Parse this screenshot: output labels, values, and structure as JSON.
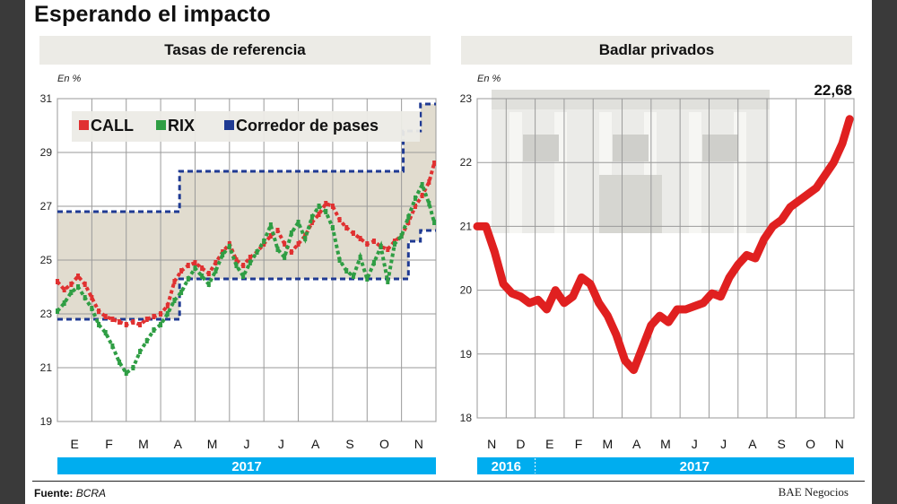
{
  "title": "Esperando el impacto",
  "footer": {
    "source_label": "Fuente:",
    "source_value": "BCRA",
    "brand": "BAE Negocios"
  },
  "chart_data": [
    {
      "type": "line",
      "title": "Tasas de referencia",
      "unit": "En %",
      "ylim": [
        19,
        31
      ],
      "yticks": [
        19,
        21,
        23,
        25,
        27,
        29,
        31
      ],
      "months": [
        "E",
        "F",
        "M",
        "A",
        "M",
        "J",
        "J",
        "A",
        "S",
        "O",
        "N"
      ],
      "year_bands": [
        "2017"
      ],
      "legend": [
        "CALL",
        "RIX",
        "Corredor de pases"
      ],
      "colors": {
        "call": "#e03131",
        "rix": "#2f9e44",
        "corridor": "#1f3a93",
        "band": "#d9d3c3"
      },
      "corridor": {
        "lower": [
          [
            0,
            22.8
          ],
          [
            3.55,
            22.8
          ],
          [
            3.55,
            24.3
          ],
          [
            10.2,
            24.3
          ],
          [
            10.2,
            25.7
          ],
          [
            10.55,
            25.7
          ],
          [
            10.55,
            26.1
          ],
          [
            11,
            26.1
          ]
        ],
        "upper": [
          [
            0,
            26.8
          ],
          [
            3.55,
            26.8
          ],
          [
            3.55,
            28.3
          ],
          [
            10.05,
            28.3
          ],
          [
            10.05,
            29.8
          ],
          [
            10.55,
            29.8
          ],
          [
            10.55,
            30.8
          ],
          [
            11,
            30.8
          ]
        ]
      },
      "series": [
        {
          "name": "CALL",
          "x": [
            0,
            0.2,
            0.4,
            0.6,
            0.8,
            1,
            1.2,
            1.4,
            1.6,
            1.8,
            2,
            2.2,
            2.4,
            2.6,
            2.8,
            3,
            3.2,
            3.4,
            3.6,
            3.8,
            4,
            4.2,
            4.4,
            4.6,
            4.8,
            5,
            5.2,
            5.4,
            5.6,
            5.8,
            6,
            6.2,
            6.4,
            6.6,
            6.8,
            7,
            7.2,
            7.4,
            7.6,
            7.8,
            8,
            8.2,
            8.4,
            8.6,
            8.8,
            9,
            9.2,
            9.4,
            9.6,
            9.8,
            10,
            10.2,
            10.4,
            10.6,
            10.8,
            10.95
          ],
          "values": [
            24.2,
            23.9,
            24.1,
            24.4,
            24.1,
            23.6,
            23.1,
            22.9,
            22.8,
            22.7,
            22.6,
            22.7,
            22.6,
            22.8,
            22.9,
            23.0,
            23.3,
            24.2,
            24.6,
            24.8,
            24.9,
            24.7,
            24.5,
            24.9,
            25.3,
            25.6,
            25.0,
            24.8,
            25.1,
            25.3,
            25.6,
            25.9,
            26.1,
            25.6,
            25.3,
            25.6,
            25.9,
            26.4,
            26.7,
            27.1,
            27.0,
            26.5,
            26.2,
            26.0,
            25.8,
            25.6,
            25.7,
            25.5,
            25.4,
            25.7,
            25.9,
            26.4,
            27.0,
            27.4,
            27.9,
            28.6
          ]
        },
        {
          "name": "RIX",
          "x": [
            0,
            0.2,
            0.4,
            0.6,
            0.8,
            1,
            1.2,
            1.4,
            1.6,
            1.8,
            2,
            2.2,
            2.4,
            2.6,
            2.8,
            3,
            3.2,
            3.4,
            3.6,
            3.8,
            4,
            4.2,
            4.4,
            4.6,
            4.8,
            5,
            5.2,
            5.4,
            5.6,
            5.8,
            6,
            6.2,
            6.4,
            6.6,
            6.8,
            7,
            7.2,
            7.4,
            7.6,
            7.8,
            8,
            8.2,
            8.4,
            8.6,
            8.8,
            9,
            9.2,
            9.4,
            9.6,
            9.8,
            10,
            10.2,
            10.4,
            10.6,
            10.8,
            10.95
          ],
          "values": [
            23.1,
            23.4,
            23.8,
            24.0,
            23.6,
            23.2,
            22.6,
            22.3,
            21.8,
            21.2,
            20.8,
            21.0,
            21.6,
            22.0,
            22.4,
            22.6,
            23.0,
            23.5,
            23.8,
            24.3,
            24.7,
            24.4,
            24.1,
            24.6,
            25.2,
            25.5,
            24.8,
            24.4,
            24.9,
            25.3,
            25.7,
            26.3,
            25.4,
            25.1,
            26.0,
            26.4,
            25.8,
            26.6,
            27.0,
            26.8,
            26.2,
            25.0,
            24.6,
            24.4,
            25.1,
            24.3,
            24.9,
            25.5,
            24.2,
            25.6,
            25.9,
            26.6,
            27.3,
            27.8,
            27.1,
            26.4
          ]
        }
      ]
    },
    {
      "type": "line",
      "title": "Badlar privados",
      "unit": "En %",
      "ylim": [
        18,
        23
      ],
      "yticks": [
        18,
        19,
        20,
        21,
        22,
        23
      ],
      "months": [
        "N",
        "D",
        "E",
        "F",
        "M",
        "A",
        "M",
        "J",
        "J",
        "A",
        "S",
        "O",
        "N"
      ],
      "year_bands": [
        "2016",
        "2017"
      ],
      "last_value_label": "22,68",
      "colors": {
        "line": "#e02020",
        "band": "#00adef"
      },
      "series": [
        {
          "name": "",
          "x": [
            0,
            0.3,
            0.6,
            0.9,
            1.2,
            1.5,
            1.8,
            2.1,
            2.4,
            2.7,
            3,
            3.3,
            3.6,
            3.9,
            4.2,
            4.5,
            4.8,
            5.1,
            5.4,
            5.7,
            6,
            6.3,
            6.6,
            6.9,
            7.2,
            7.5,
            7.8,
            8.1,
            8.4,
            8.7,
            9,
            9.3,
            9.6,
            9.9,
            10.2,
            10.5,
            10.8,
            11.1,
            11.4,
            11.7,
            12,
            12.3,
            12.6,
            12.85
          ],
          "values": [
            21.0,
            21.0,
            20.6,
            20.1,
            19.95,
            19.9,
            19.8,
            19.85,
            19.7,
            20.0,
            19.8,
            19.9,
            20.2,
            20.1,
            19.8,
            19.6,
            19.3,
            18.9,
            18.75,
            19.1,
            19.45,
            19.6,
            19.5,
            19.7,
            19.7,
            19.75,
            19.8,
            19.95,
            19.9,
            20.2,
            20.4,
            20.55,
            20.5,
            20.8,
            21.0,
            21.1,
            21.3,
            21.4,
            21.5,
            21.6,
            21.8,
            22.0,
            22.3,
            22.68
          ]
        }
      ]
    }
  ]
}
